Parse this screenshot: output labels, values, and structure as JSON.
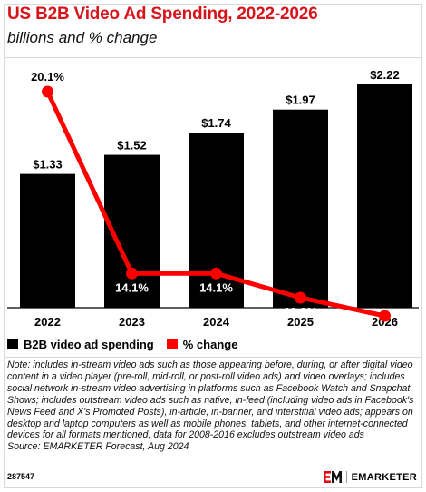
{
  "header": {
    "title": "US B2B Video Ad Spending, 2022-2026",
    "subtitle": "billions and % change"
  },
  "colors": {
    "bar": "#000000",
    "line": "#ff0000",
    "accent": "#d7141a",
    "brand_red": "#e30613"
  },
  "chart_data": {
    "type": "bar",
    "categories": [
      "2022",
      "2023",
      "2024",
      "2025",
      "2026"
    ],
    "series": [
      {
        "name": "B2B video ad spending",
        "type": "bar",
        "values": [
          1.33,
          1.52,
          1.74,
          1.97,
          2.22
        ],
        "labels": [
          "$1.33",
          "$1.52",
          "$1.74",
          "$1.97",
          "$2.22"
        ]
      },
      {
        "name": "% change",
        "type": "line",
        "values": [
          20.1,
          14.1,
          14.1,
          13.3,
          12.7
        ],
        "labels": [
          "20.1%",
          "14.1%",
          "14.1%",
          "13.3%",
          "12.7%"
        ]
      }
    ],
    "title": "US B2B Video Ad Spending, 2022-2026",
    "subtitle": "billions and % change",
    "grid": false,
    "legend": "bottom-left"
  },
  "legend": {
    "bar_label": "B2B video ad spending",
    "line_label": "% change"
  },
  "note": {
    "text": "Note: includes in-stream video ads such as those appearing before, during, or after digital video content in a video player (pre-roll, mid-roll, or post-roll video ads) and video overlays; includes social network in-stream video advertising in platforms such as Facebook Watch and Snapchat Shows; includes outstream video ads such as native, in-feed (including video ads in Facebook's News Feed and X's Promoted Posts), in-article, in-banner, and interstitial video ads; appears on desktop and laptop computers as well as mobile phones, tablets, and other internet-connected devices for all formats mentioned; data for 2008-2016 excludes outstream video ads",
    "source": "Source: EMARKETER Forecast, Aug 2024"
  },
  "footer": {
    "chart_id": "287547",
    "brand": "EMARKETER",
    "logo_text": "EM"
  }
}
